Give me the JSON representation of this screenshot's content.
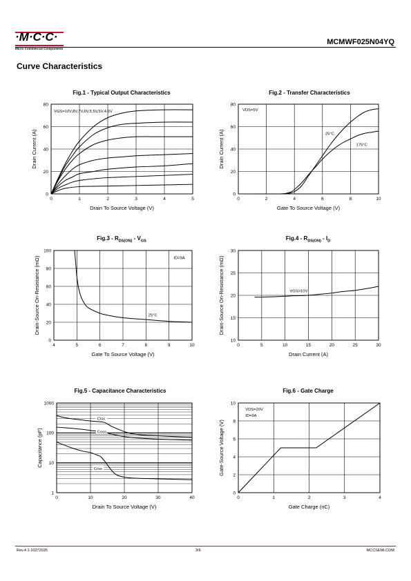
{
  "header": {
    "logo_text": "·M·C·C·",
    "logo_sub": "Micro Commercial Components",
    "part_number": "MCMWF025N04YQ",
    "section_title": "Curve Characteristics"
  },
  "footer": {
    "revision": "Rev.4.1-10272025",
    "page": "3/6",
    "website": "MCCSEMI.COM"
  },
  "colors": {
    "accent": "#c8102e",
    "line": "#000000",
    "grid": "#000000"
  },
  "chart_data": [
    {
      "id": "fig1",
      "type": "line",
      "title": "Fig.1 - Typical Output Characteristics",
      "xlabel": "Drain To Source Voltage (V)",
      "ylabel": "Drain Current (A)",
      "xlim": [
        0,
        5
      ],
      "ylim": [
        0,
        80
      ],
      "xticks": [
        0,
        1,
        2,
        3,
        4,
        5
      ],
      "yticks": [
        0,
        20,
        40,
        60,
        80
      ],
      "grid": true,
      "annotations": [
        {
          "text": "VGS=10V,8V,7V,6V,5.5V,5V,4.5V",
          "x": 0.1,
          "y": 74
        }
      ],
      "series": [
        {
          "values": [
            [
              0,
              0
            ],
            [
              0.25,
              14
            ],
            [
              0.5,
              27
            ],
            [
              0.75,
              38
            ],
            [
              1,
              47
            ],
            [
              1.5,
              60
            ],
            [
              2,
              68
            ],
            [
              2.5,
              72
            ],
            [
              3,
              74
            ],
            [
              4,
              75
            ],
            [
              5,
              75
            ]
          ]
        },
        {
          "values": [
            [
              0,
              0
            ],
            [
              0.25,
              13
            ],
            [
              0.5,
              25
            ],
            [
              0.75,
              34
            ],
            [
              1,
              42
            ],
            [
              1.5,
              53
            ],
            [
              2,
              59
            ],
            [
              2.5,
              62
            ],
            [
              3,
              63
            ],
            [
              4,
              64
            ],
            [
              5,
              64
            ]
          ]
        },
        {
          "values": [
            [
              0,
              0
            ],
            [
              0.25,
              12
            ],
            [
              0.5,
              22
            ],
            [
              0.75,
              30
            ],
            [
              1,
              36
            ],
            [
              1.5,
              44
            ],
            [
              2,
              48
            ],
            [
              2.5,
              50
            ],
            [
              3,
              51
            ],
            [
              4,
              51
            ],
            [
              5,
              51
            ]
          ]
        },
        {
          "values": [
            [
              0,
              0
            ],
            [
              0.25,
              9
            ],
            [
              0.5,
              16
            ],
            [
              0.75,
              22
            ],
            [
              1,
              26
            ],
            [
              1.5,
              30
            ],
            [
              2,
              32
            ],
            [
              2.5,
              33
            ],
            [
              3,
              34
            ],
            [
              4,
              35
            ],
            [
              5,
              36
            ]
          ]
        },
        {
          "values": [
            [
              0,
              0
            ],
            [
              0.25,
              7
            ],
            [
              0.5,
              12
            ],
            [
              0.75,
              15
            ],
            [
              1,
              18
            ],
            [
              1.5,
              20
            ],
            [
              2,
              22
            ],
            [
              3,
              24
            ],
            [
              4,
              25
            ],
            [
              5,
              27
            ]
          ]
        },
        {
          "values": [
            [
              0,
              0
            ],
            [
              0.25,
              5
            ],
            [
              0.5,
              8
            ],
            [
              0.75,
              10.5
            ],
            [
              1,
              12
            ],
            [
              1.5,
              13.5
            ],
            [
              2,
              14.5
            ],
            [
              3,
              15.5
            ],
            [
              4,
              16.5
            ],
            [
              5,
              17.5
            ]
          ]
        },
        {
          "values": [
            [
              0,
              0
            ],
            [
              0.25,
              3
            ],
            [
              0.5,
              5
            ],
            [
              1,
              6.5
            ],
            [
              2,
              7
            ],
            [
              3,
              7.5
            ],
            [
              4,
              8
            ],
            [
              5,
              8.5
            ]
          ]
        }
      ]
    },
    {
      "id": "fig2",
      "type": "line",
      "title": "Fig.2 - Transfer Characteristics",
      "xlabel": "Gate To Source Voltage (V)",
      "ylabel": "Drain Current (A)",
      "xlim": [
        0,
        10
      ],
      "ylim": [
        0,
        80
      ],
      "xticks": [
        0,
        2,
        4,
        6,
        8,
        10
      ],
      "yticks": [
        0,
        20,
        40,
        60,
        80
      ],
      "grid": true,
      "annotations": [
        {
          "text": "VDS=5V",
          "x": 0.3,
          "y": 75
        },
        {
          "text": "25°C",
          "x": 6.2,
          "y": 54
        },
        {
          "text": "175°C",
          "x": 8.4,
          "y": 44
        }
      ],
      "series": [
        {
          "name": "25°C",
          "values": [
            [
              1,
              0
            ],
            [
              3,
              0
            ],
            [
              3.6,
              0.5
            ],
            [
              4,
              2
            ],
            [
              4.5,
              7
            ],
            [
              5,
              16
            ],
            [
              5.5,
              25
            ],
            [
              6,
              34
            ],
            [
              6.5,
              43
            ],
            [
              7,
              51
            ],
            [
              7.5,
              58
            ],
            [
              8,
              64
            ],
            [
              8.5,
              69
            ],
            [
              9,
              73
            ],
            [
              9.5,
              75
            ],
            [
              10,
              76
            ]
          ]
        },
        {
          "name": "175°C",
          "values": [
            [
              3,
              0
            ],
            [
              3.4,
              0.5
            ],
            [
              3.8,
              2
            ],
            [
              4.2,
              6
            ],
            [
              4.6,
              11
            ],
            [
              5,
              17
            ],
            [
              5.5,
              24
            ],
            [
              6,
              31
            ],
            [
              6.5,
              37
            ],
            [
              7,
              42
            ],
            [
              7.5,
              46
            ],
            [
              8,
              49
            ],
            [
              8.5,
              52
            ],
            [
              9,
              54
            ],
            [
              9.5,
              55
            ],
            [
              10,
              56
            ]
          ]
        }
      ]
    },
    {
      "id": "fig3",
      "type": "line",
      "title": "Fig.3 - R",
      "title_sub1": "DS(ON)",
      "title_mid": " - V",
      "title_sub2": "GS",
      "xlabel": "Gate To Source Voltage (V)",
      "ylabel": "Drain-Source On-Resistance (mΩ)",
      "xlim": [
        4,
        10
      ],
      "ylim": [
        0,
        100
      ],
      "xticks": [
        4,
        5,
        6,
        7,
        8,
        9,
        10
      ],
      "yticks": [
        0,
        20,
        40,
        60,
        80,
        100
      ],
      "grid": true,
      "annotations": [
        {
          "text": "ID=9A",
          "x": 9.2,
          "y": 92
        },
        {
          "text": "25°C",
          "x": 8.1,
          "y": 28
        }
      ],
      "series": [
        {
          "values": [
            [
              4.9,
              100
            ],
            [
              4.95,
              85
            ],
            [
              5,
              70
            ],
            [
              5.1,
              55
            ],
            [
              5.2,
              47
            ],
            [
              5.35,
              40
            ],
            [
              5.5,
              36
            ],
            [
              6,
              30
            ],
            [
              6.5,
              27
            ],
            [
              7,
              25
            ],
            [
              8,
              23
            ],
            [
              9,
              21
            ],
            [
              10,
              20
            ]
          ]
        }
      ]
    },
    {
      "id": "fig4",
      "type": "line",
      "title": "Fig.4 - R",
      "title_sub1": "DS(ON)",
      "title_mid": " - I",
      "title_sub2": "D",
      "xlabel": "Drain Current (A)",
      "ylabel": "Drain-Source On-Resistance (mΩ)",
      "xlim": [
        0,
        30
      ],
      "ylim": [
        10,
        30
      ],
      "xticks": [
        0,
        5,
        10,
        15,
        20,
        25,
        30
      ],
      "yticks": [
        10,
        15,
        20,
        25,
        30
      ],
      "grid": true,
      "annotations": [
        {
          "text": "VGS=10V",
          "x": 11,
          "y": 21
        }
      ],
      "series": [
        {
          "values": [
            [
              3.5,
              19.6
            ],
            [
              5,
              19.6
            ],
            [
              8,
              19.7
            ],
            [
              10,
              19.8
            ],
            [
              12,
              19.9
            ],
            [
              15,
              20.0
            ],
            [
              18,
              20.3
            ],
            [
              20,
              20.5
            ],
            [
              22,
              20.8
            ],
            [
              25,
              21.1
            ],
            [
              28,
              21.6
            ],
            [
              30,
              22.0
            ]
          ]
        }
      ]
    },
    {
      "id": "fig5",
      "type": "line",
      "scale_y": "log",
      "title": "Fig.5 - Capacitance Characteristics",
      "xlabel": "Drain To Source Voltage (V)",
      "ylabel": "Capacitance (pF)",
      "xlim": [
        0,
        40
      ],
      "ylim": [
        1,
        1000
      ],
      "xticks": [
        0,
        10,
        20,
        30,
        40
      ],
      "yticks": [
        1,
        10,
        100,
        1000
      ],
      "grid": true,
      "annotations": [
        {
          "text": "Ciss",
          "x": 12,
          "y": 300
        },
        {
          "text": "Coss",
          "x": 12,
          "y": 110
        },
        {
          "text": "Crss",
          "x": 11,
          "y": 6.5
        }
      ],
      "series": [
        {
          "name": "Ciss",
          "values": [
            [
              0,
              380
            ],
            [
              2,
              330
            ],
            [
              5,
              290
            ],
            [
              8,
              265
            ],
            [
              10,
              250
            ],
            [
              12,
              240
            ],
            [
              14,
              225
            ],
            [
              15,
              200
            ],
            [
              16,
              170
            ],
            [
              18,
              135
            ],
            [
              20,
              110
            ],
            [
              22,
              95
            ],
            [
              25,
              85
            ],
            [
              30,
              80
            ],
            [
              35,
              75
            ],
            [
              40,
              72
            ]
          ]
        },
        {
          "name": "Coss",
          "values": [
            [
              0,
              155
            ],
            [
              2,
              150
            ],
            [
              5,
              140
            ],
            [
              8,
              130
            ],
            [
              10,
              120
            ],
            [
              12,
              115
            ],
            [
              14,
              108
            ],
            [
              15,
              100
            ],
            [
              16,
              92
            ],
            [
              18,
              82
            ],
            [
              20,
              75
            ],
            [
              22,
              70
            ],
            [
              25,
              66
            ],
            [
              30,
              62
            ],
            [
              35,
              59
            ],
            [
              40,
              57
            ]
          ]
        },
        {
          "name": "Crss",
          "values": [
            [
              0,
              50
            ],
            [
              2,
              40
            ],
            [
              5,
              30
            ],
            [
              8,
              24
            ],
            [
              10,
              22
            ],
            [
              12,
              18
            ],
            [
              13,
              16
            ],
            [
              14,
              12
            ],
            [
              15,
              8.5
            ],
            [
              16,
              6
            ],
            [
              17,
              4.5
            ],
            [
              18,
              3.8
            ],
            [
              20,
              3.3
            ],
            [
              22,
              3.1
            ],
            [
              25,
              3.0
            ],
            [
              30,
              2.9
            ],
            [
              35,
              2.8
            ],
            [
              40,
              2.7
            ]
          ]
        }
      ]
    },
    {
      "id": "fig6",
      "type": "line",
      "title": "Fig.6 - Gate Charge",
      "xlabel": "Gate Charge (nC)",
      "ylabel": "Gate-Source Voltage (V)",
      "xlim": [
        0,
        4
      ],
      "ylim": [
        0,
        10
      ],
      "xticks": [
        0,
        1,
        2,
        3,
        4
      ],
      "yticks": [
        0,
        2,
        4,
        6,
        8,
        10
      ],
      "grid": true,
      "annotations": [
        {
          "text": "VDS=20V",
          "x": 0.2,
          "y": 9.3
        },
        {
          "text": "ID=9A",
          "x": 0.2,
          "y": 8.6
        }
      ],
      "series": [
        {
          "values": [
            [
              0,
              0
            ],
            [
              1.2,
              5
            ],
            [
              2.2,
              5
            ],
            [
              4,
              10
            ]
          ]
        }
      ]
    }
  ]
}
